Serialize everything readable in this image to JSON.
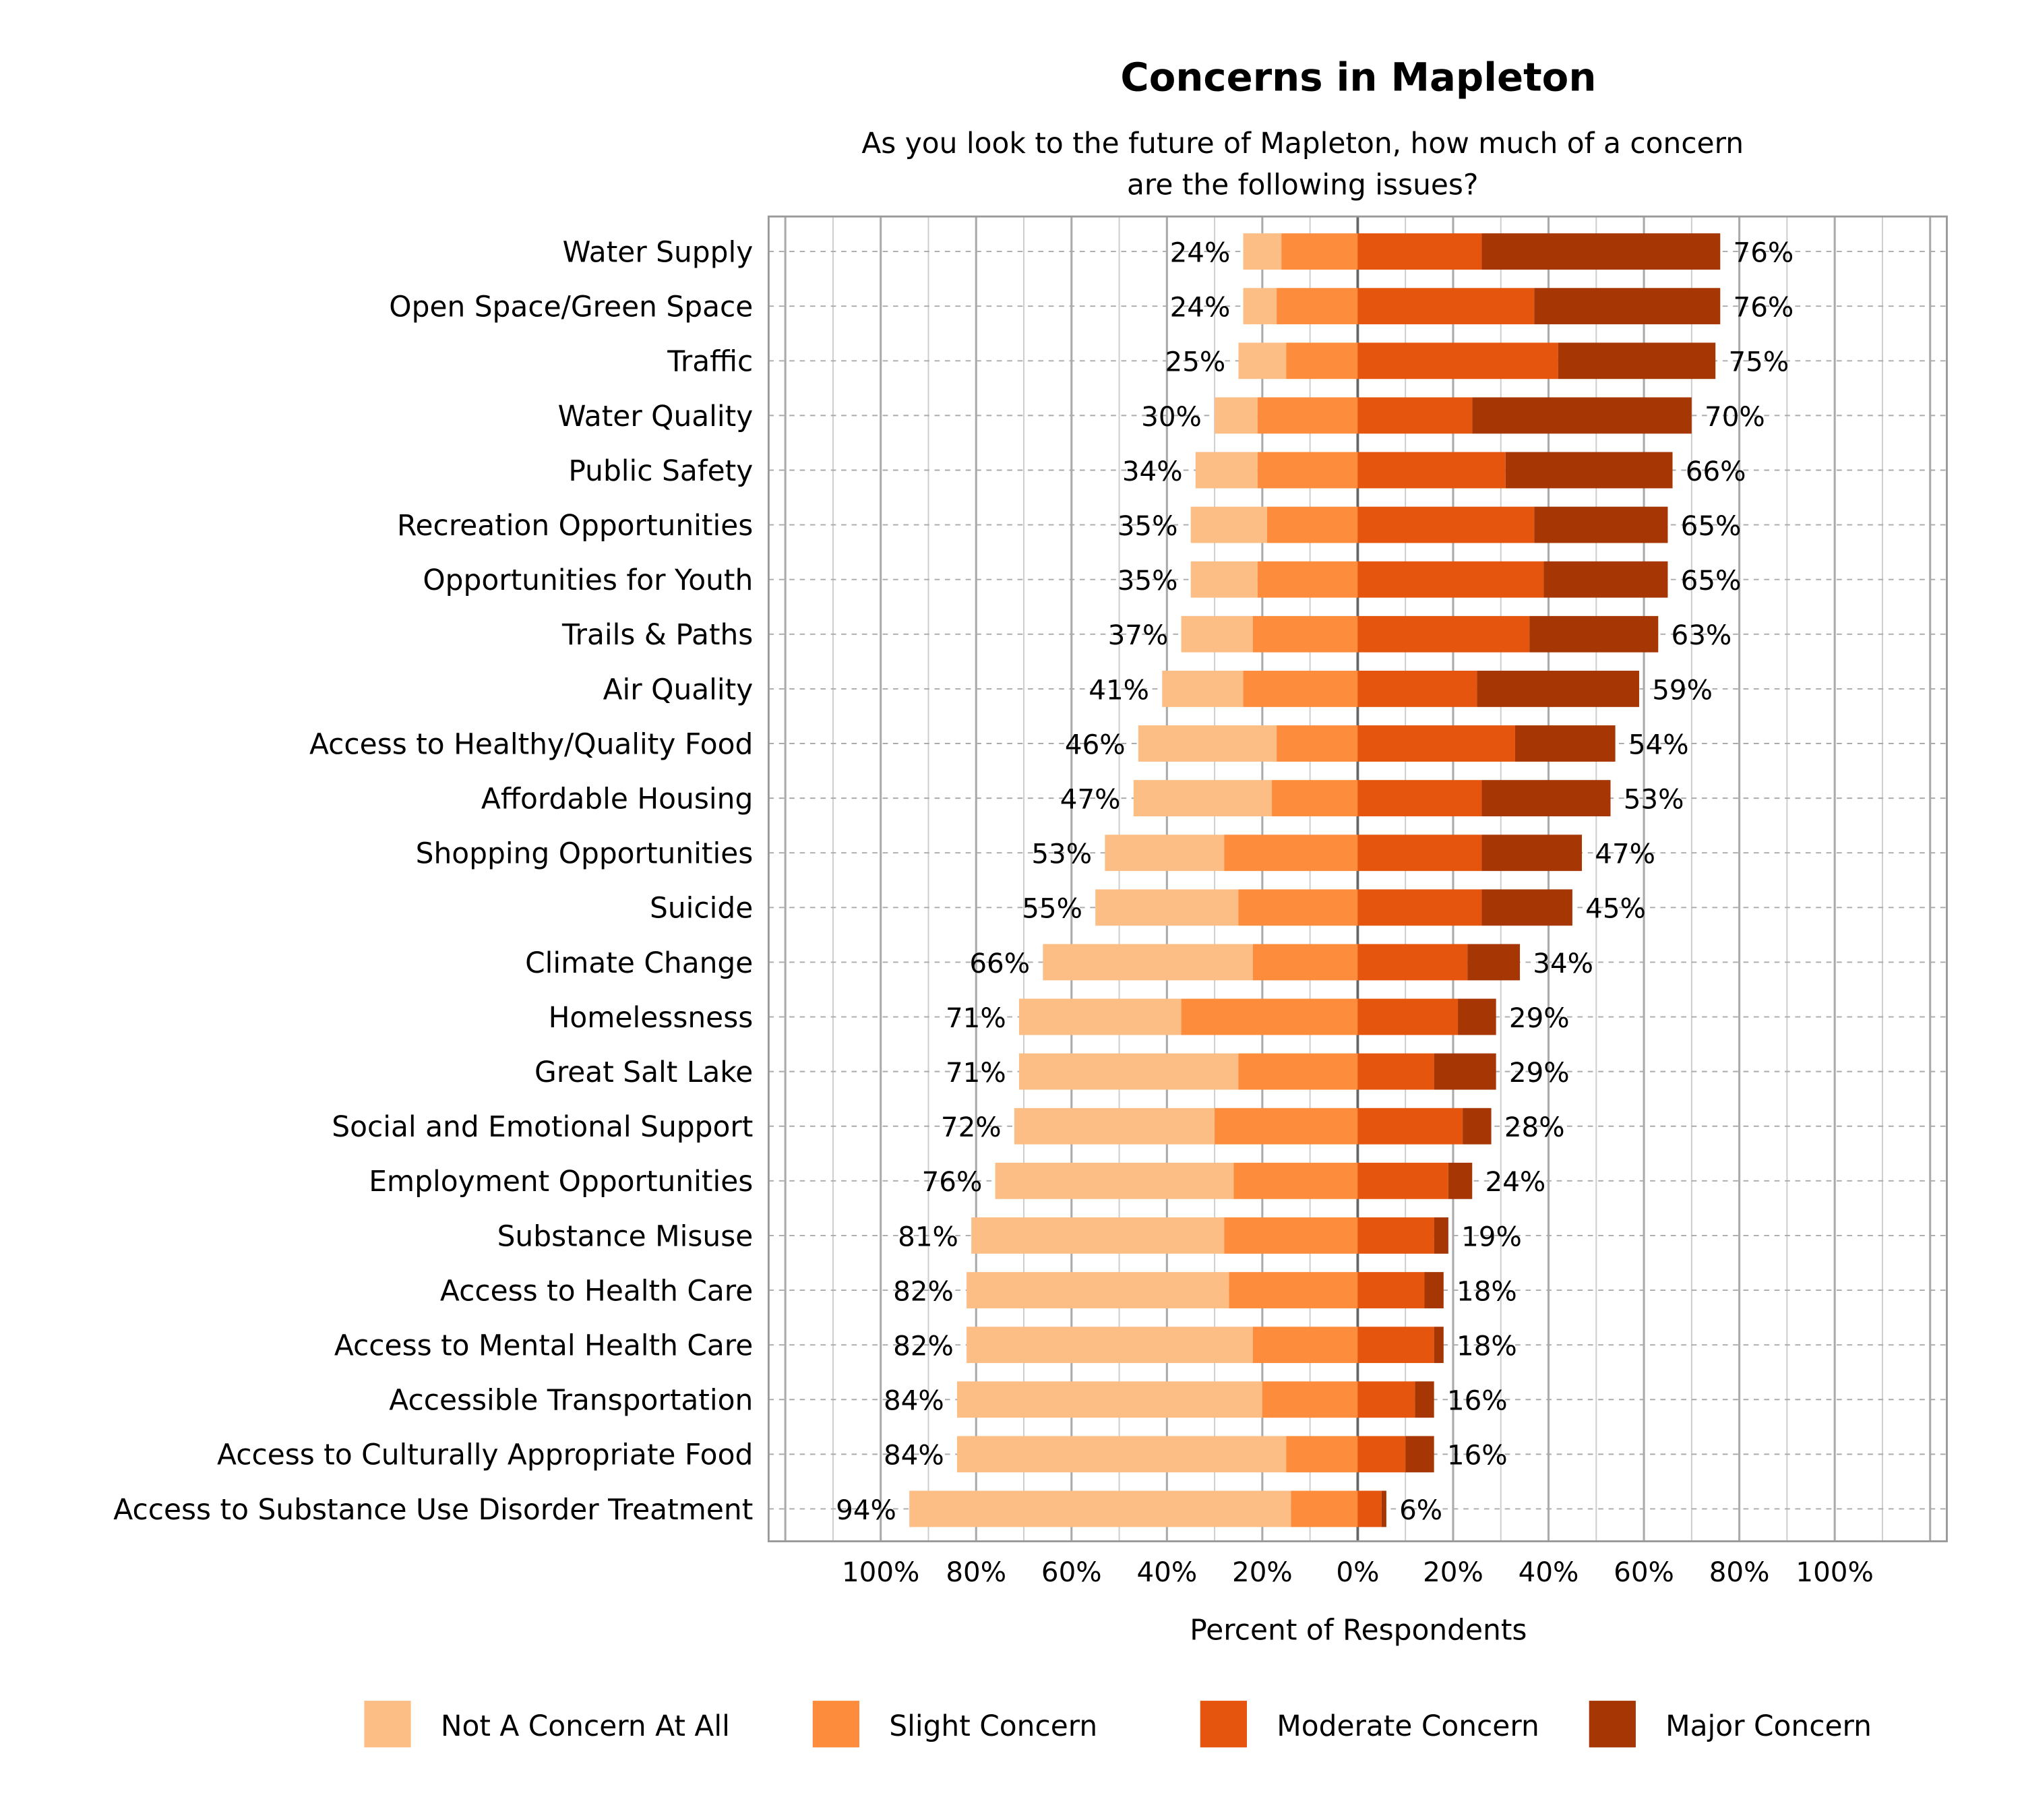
{
  "chart_data": {
    "type": "bar",
    "orientation": "horizontal",
    "stacked": "diverging",
    "title": "Concerns in Mapleton",
    "subtitle": "As you look to the future of Mapleton, how much of a concern are the following issues?",
    "subtitle_lines": [
      "As you look to the future of Mapleton, how much of a concern",
      "are the following issues?"
    ],
    "xlabel": "Percent of Respondents",
    "ylabel": "",
    "xlim": [
      -123.5,
      123.5
    ],
    "xticks": [
      -100,
      -80,
      -60,
      -40,
      -20,
      0,
      20,
      40,
      60,
      80,
      100
    ],
    "xtick_labels": [
      "100%",
      "80%",
      "60%",
      "40%",
      "20%",
      "0%",
      "20%",
      "40%",
      "60%",
      "80%",
      "100%"
    ],
    "grid": true,
    "legend_position": "bottom",
    "categories": [
      "Water Supply",
      "Open Space/Green Space",
      "Traffic",
      "Water Quality",
      "Public Safety",
      "Recreation Opportunities",
      "Opportunities for Youth",
      "Trails & Paths",
      "Air Quality",
      "Access to Healthy/Quality Food",
      "Affordable Housing",
      "Shopping Opportunities",
      "Suicide",
      "Climate Change",
      "Homelessness",
      "Great Salt Lake",
      "Social and Emotional Support",
      "Employment Opportunities",
      "Substance Misuse",
      "Access to Health Care",
      "Access to Mental Health Care",
      "Accessible Transportation",
      "Access to Culturally Appropriate Food",
      "Access to Substance Use Disorder Treatment"
    ],
    "series": [
      {
        "name": "Not A Concern At All",
        "side": "left",
        "color": "#FDBE85",
        "values": [
          8,
          7,
          10,
          9,
          13,
          16,
          14,
          15,
          17,
          29,
          29,
          25,
          30,
          44,
          34,
          46,
          42,
          50,
          53,
          55,
          60,
          64,
          69,
          80
        ]
      },
      {
        "name": "Slight Concern",
        "side": "left",
        "color": "#FD8D3C",
        "values": [
          16,
          17,
          15,
          21,
          21,
          19,
          21,
          22,
          24,
          17,
          18,
          28,
          25,
          22,
          37,
          25,
          30,
          26,
          28,
          27,
          22,
          20,
          15,
          14
        ]
      },
      {
        "name": "Moderate Concern",
        "side": "right",
        "color": "#E6550D",
        "values": [
          26,
          37,
          42,
          24,
          31,
          37,
          39,
          36,
          25,
          33,
          26,
          26,
          26,
          23,
          21,
          16,
          22,
          19,
          16,
          14,
          16,
          12,
          10,
          5
        ]
      },
      {
        "name": "Major Concern",
        "side": "right",
        "color": "#A63603",
        "values": [
          50,
          39,
          33,
          46,
          35,
          28,
          26,
          27,
          34,
          21,
          27,
          21,
          19,
          11,
          8,
          13,
          6,
          5,
          3,
          4,
          2,
          4,
          6,
          1
        ]
      }
    ],
    "left_totals": [
      "24%",
      "24%",
      "25%",
      "30%",
      "34%",
      "35%",
      "35%",
      "37%",
      "41%",
      "46%",
      "47%",
      "53%",
      "55%",
      "66%",
      "71%",
      "71%",
      "72%",
      "76%",
      "81%",
      "82%",
      "82%",
      "84%",
      "84%",
      "94%"
    ],
    "right_totals": [
      "76%",
      "76%",
      "75%",
      "70%",
      "66%",
      "65%",
      "65%",
      "63%",
      "59%",
      "54%",
      "53%",
      "47%",
      "45%",
      "34%",
      "29%",
      "29%",
      "28%",
      "24%",
      "19%",
      "18%",
      "18%",
      "16%",
      "16%",
      "6%"
    ]
  }
}
